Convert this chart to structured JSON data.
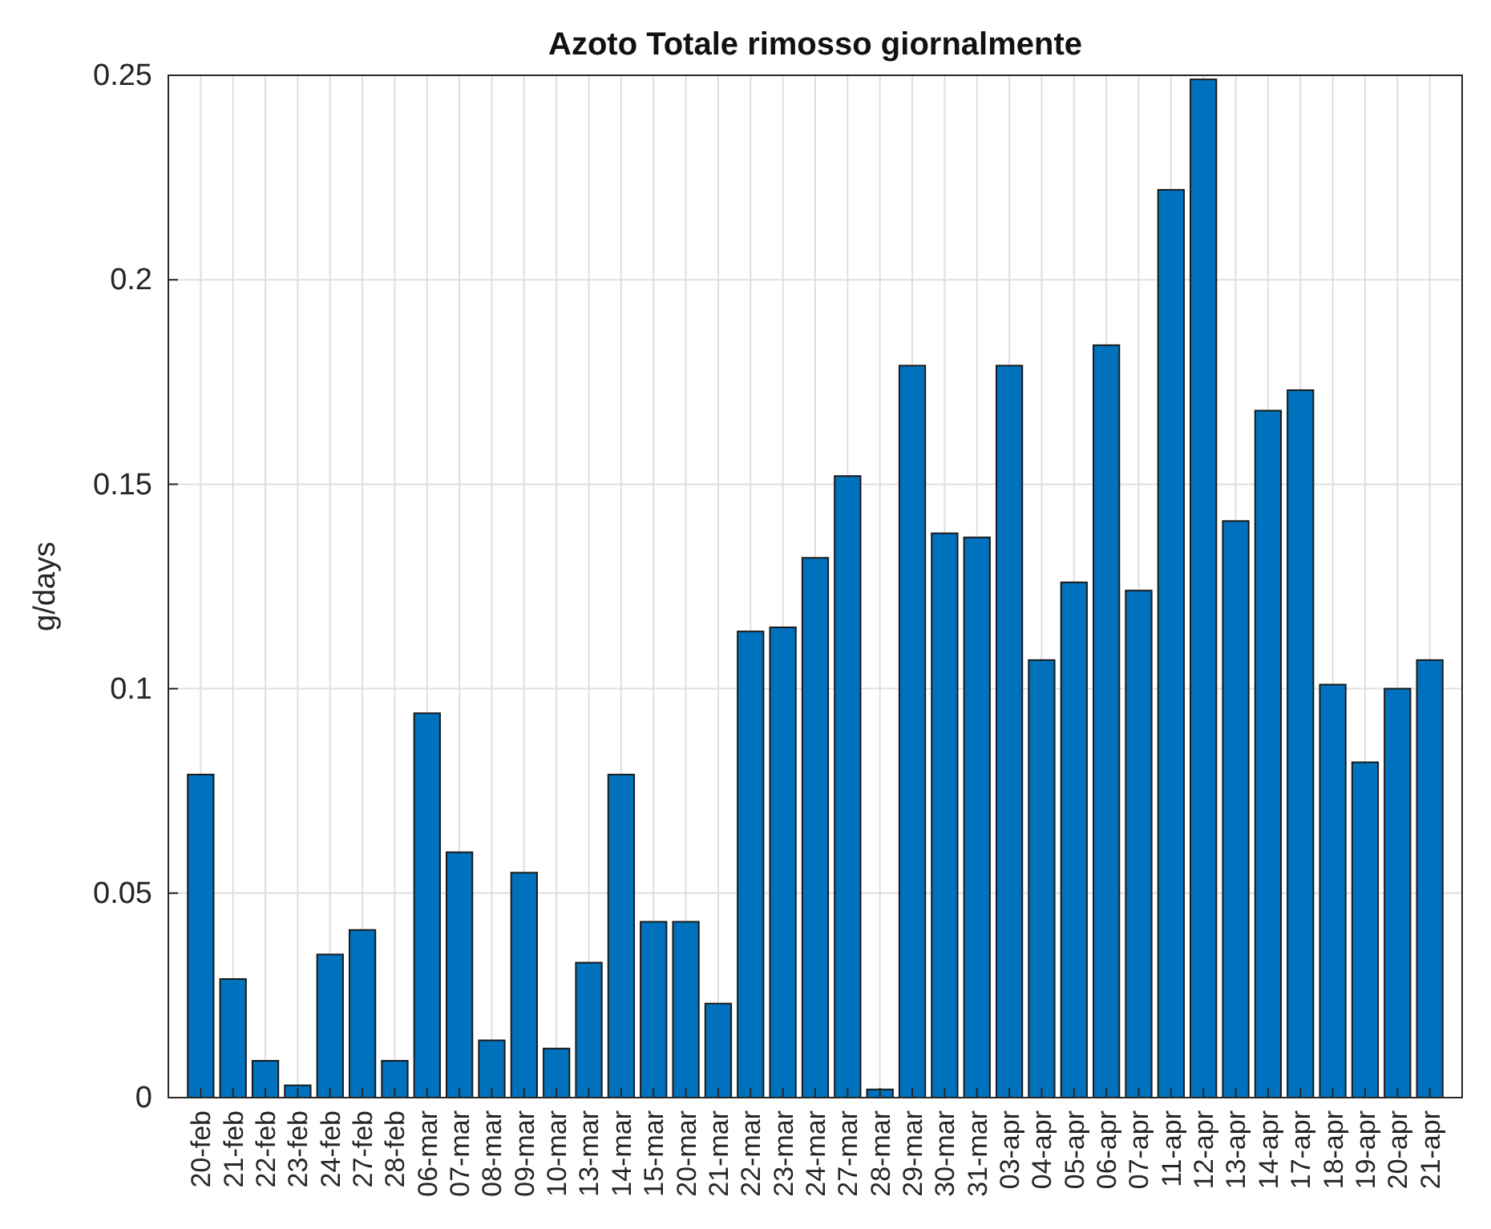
{
  "chart_data": {
    "type": "bar",
    "title": "Azoto Totale rimosso giornalmente",
    "ylabel": "g/days",
    "categories": [
      "20-feb",
      "21-feb",
      "22-feb",
      "23-feb",
      "24-feb",
      "27-feb",
      "28-feb",
      "06-mar",
      "07-mar",
      "08-mar",
      "09-mar",
      "10-mar",
      "13-mar",
      "14-mar",
      "15-mar",
      "20-mar",
      "21-mar",
      "22-mar",
      "23-mar",
      "24-mar",
      "27-mar",
      "28-mar",
      "29-mar",
      "30-mar",
      "31-mar",
      "03-apr",
      "04-apr",
      "05-apr",
      "06-apr",
      "07-apr",
      "11-apr",
      "12-apr",
      "13-apr",
      "14-apr",
      "17-apr",
      "18-apr",
      "19-apr",
      "20-apr",
      "21-apr"
    ],
    "values": [
      0.079,
      0.029,
      0.009,
      0.003,
      0.035,
      0.041,
      0.009,
      0.094,
      0.06,
      0.014,
      0.055,
      0.012,
      0.033,
      0.079,
      0.043,
      0.043,
      0.023,
      0.114,
      0.115,
      0.132,
      0.152,
      0.002,
      0.179,
      0.138,
      0.137,
      0.179,
      0.107,
      0.126,
      0.184,
      0.124,
      0.222,
      0.249,
      0.141,
      0.168,
      0.173,
      0.101,
      0.082,
      0.1,
      0.107
    ],
    "color": "#0072bd",
    "ylim": [
      0,
      0.25
    ],
    "yticks": [
      0,
      0.05,
      0.1,
      0.15,
      0.2,
      0.25
    ],
    "grid": true
  }
}
